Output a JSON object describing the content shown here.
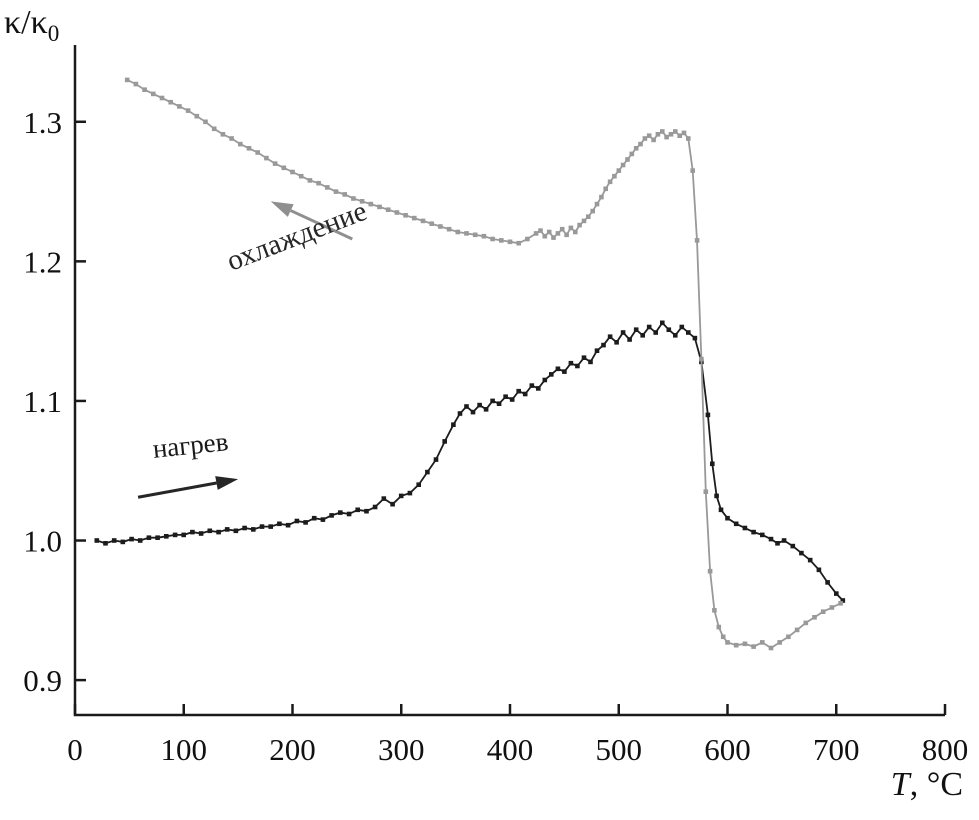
{
  "figure": {
    "background": "#ffffff",
    "axis_color": "#1a1a1a",
    "tick_label_color": "#111111"
  },
  "chart_data": {
    "type": "line",
    "title": "",
    "xlabel": {
      "var": "T",
      "rest": ", °C"
    },
    "ylabel": {
      "base": "κ/κ",
      "sub": "0"
    },
    "xlim": [
      0,
      800
    ],
    "ylim": [
      0.875,
      1.355
    ],
    "x_ticks": [
      0,
      100,
      200,
      300,
      400,
      500,
      600,
      700,
      800
    ],
    "y_ticks": [
      0.9,
      1.0,
      1.1,
      1.2,
      1.3
    ],
    "grid": false,
    "legend_position": "none",
    "annotations": [
      {
        "id": "cooling",
        "text": "охлаждение",
        "text_x": 207,
        "text_y": 1.212,
        "rotation_deg": -21,
        "font_px": 29,
        "text_color": "#262626",
        "arrow": {
          "from_x": 255,
          "from_y": 1.216,
          "to_x": 180,
          "to_y": 1.243,
          "color": "#8f8f8f",
          "width": 3
        }
      },
      {
        "id": "heating",
        "text": "нагрев",
        "text_x": 107,
        "text_y": 1.062,
        "rotation_deg": -6,
        "font_px": 27,
        "text_color": "#1a1a1a",
        "arrow": {
          "from_x": 58,
          "from_y": 1.031,
          "to_x": 150,
          "to_y": 1.044,
          "color": "#262626",
          "width": 3
        }
      }
    ],
    "series": [
      {
        "id": "heating",
        "name": "нагрев",
        "color": "#1c1c1c",
        "marker": "square",
        "points": [
          [
            20,
            1.0
          ],
          [
            28,
            0.998
          ],
          [
            36,
            1.0
          ],
          [
            44,
            0.999
          ],
          [
            52,
            1.001
          ],
          [
            60,
            1.0
          ],
          [
            68,
            1.002
          ],
          [
            76,
            1.002
          ],
          [
            84,
            1.003
          ],
          [
            92,
            1.004
          ],
          [
            100,
            1.004
          ],
          [
            108,
            1.006
          ],
          [
            116,
            1.005
          ],
          [
            124,
            1.007
          ],
          [
            132,
            1.006
          ],
          [
            140,
            1.008
          ],
          [
            148,
            1.007
          ],
          [
            156,
            1.009
          ],
          [
            164,
            1.008
          ],
          [
            172,
            1.01
          ],
          [
            180,
            1.01
          ],
          [
            188,
            1.012
          ],
          [
            196,
            1.011
          ],
          [
            204,
            1.014
          ],
          [
            212,
            1.013
          ],
          [
            220,
            1.016
          ],
          [
            228,
            1.015
          ],
          [
            236,
            1.018
          ],
          [
            244,
            1.02
          ],
          [
            252,
            1.019
          ],
          [
            260,
            1.022
          ],
          [
            268,
            1.021
          ],
          [
            276,
            1.024
          ],
          [
            284,
            1.03
          ],
          [
            292,
            1.026
          ],
          [
            300,
            1.032
          ],
          [
            308,
            1.034
          ],
          [
            316,
            1.04
          ],
          [
            324,
            1.049
          ],
          [
            332,
            1.058
          ],
          [
            340,
            1.071
          ],
          [
            348,
            1.083
          ],
          [
            354,
            1.091
          ],
          [
            360,
            1.096
          ],
          [
            366,
            1.092
          ],
          [
            372,
            1.097
          ],
          [
            378,
            1.094
          ],
          [
            384,
            1.1
          ],
          [
            390,
            1.098
          ],
          [
            396,
            1.103
          ],
          [
            402,
            1.101
          ],
          [
            408,
            1.107
          ],
          [
            414,
            1.105
          ],
          [
            420,
            1.111
          ],
          [
            426,
            1.109
          ],
          [
            432,
            1.115
          ],
          [
            438,
            1.119
          ],
          [
            444,
            1.123
          ],
          [
            450,
            1.121
          ],
          [
            456,
            1.127
          ],
          [
            462,
            1.125
          ],
          [
            468,
            1.131
          ],
          [
            474,
            1.128
          ],
          [
            480,
            1.136
          ],
          [
            486,
            1.14
          ],
          [
            492,
            1.146
          ],
          [
            498,
            1.142
          ],
          [
            504,
            1.149
          ],
          [
            510,
            1.144
          ],
          [
            516,
            1.151
          ],
          [
            522,
            1.147
          ],
          [
            528,
            1.153
          ],
          [
            534,
            1.149
          ],
          [
            540,
            1.156
          ],
          [
            546,
            1.151
          ],
          [
            552,
            1.147
          ],
          [
            558,
            1.153
          ],
          [
            564,
            1.149
          ],
          [
            570,
            1.145
          ],
          [
            576,
            1.128
          ],
          [
            582,
            1.09
          ],
          [
            586,
            1.055
          ],
          [
            590,
            1.032
          ],
          [
            594,
            1.022
          ],
          [
            600,
            1.016
          ],
          [
            608,
            1.012
          ],
          [
            616,
            1.009
          ],
          [
            624,
            1.006
          ],
          [
            632,
            1.004
          ],
          [
            640,
            1.001
          ],
          [
            646,
            0.998
          ],
          [
            652,
            1.0
          ],
          [
            660,
            0.996
          ],
          [
            668,
            0.991
          ],
          [
            676,
            0.986
          ],
          [
            684,
            0.979
          ],
          [
            692,
            0.97
          ],
          [
            700,
            0.962
          ],
          [
            706,
            0.957
          ]
        ]
      },
      {
        "id": "cooling",
        "name": "охлаждение",
        "color": "#999999",
        "marker": "square",
        "points": [
          [
            48,
            1.33
          ],
          [
            56,
            1.327
          ],
          [
            64,
            1.323
          ],
          [
            72,
            1.32
          ],
          [
            80,
            1.317
          ],
          [
            88,
            1.314
          ],
          [
            96,
            1.311
          ],
          [
            104,
            1.308
          ],
          [
            112,
            1.304
          ],
          [
            120,
            1.3
          ],
          [
            128,
            1.295
          ],
          [
            136,
            1.291
          ],
          [
            144,
            1.288
          ],
          [
            152,
            1.284
          ],
          [
            160,
            1.281
          ],
          [
            168,
            1.278
          ],
          [
            176,
            1.274
          ],
          [
            184,
            1.27
          ],
          [
            192,
            1.267
          ],
          [
            200,
            1.264
          ],
          [
            208,
            1.261
          ],
          [
            216,
            1.258
          ],
          [
            224,
            1.256
          ],
          [
            232,
            1.253
          ],
          [
            240,
            1.25
          ],
          [
            248,
            1.248
          ],
          [
            256,
            1.245
          ],
          [
            264,
            1.243
          ],
          [
            272,
            1.241
          ],
          [
            280,
            1.239
          ],
          [
            288,
            1.237
          ],
          [
            296,
            1.235
          ],
          [
            304,
            1.233
          ],
          [
            312,
            1.231
          ],
          [
            320,
            1.229
          ],
          [
            328,
            1.227
          ],
          [
            336,
            1.225
          ],
          [
            344,
            1.223
          ],
          [
            352,
            1.221
          ],
          [
            360,
            1.22
          ],
          [
            368,
            1.219
          ],
          [
            376,
            1.218
          ],
          [
            384,
            1.216
          ],
          [
            392,
            1.215
          ],
          [
            400,
            1.214
          ],
          [
            408,
            1.213
          ],
          [
            416,
            1.216
          ],
          [
            424,
            1.22
          ],
          [
            428,
            1.222
          ],
          [
            432,
            1.218
          ],
          [
            436,
            1.221
          ],
          [
            440,
            1.217
          ],
          [
            444,
            1.22
          ],
          [
            448,
            1.223
          ],
          [
            452,
            1.219
          ],
          [
            456,
            1.224
          ],
          [
            460,
            1.221
          ],
          [
            464,
            1.226
          ],
          [
            468,
            1.229
          ],
          [
            472,
            1.232
          ],
          [
            476,
            1.236
          ],
          [
            480,
            1.241
          ],
          [
            484,
            1.246
          ],
          [
            488,
            1.252
          ],
          [
            492,
            1.257
          ],
          [
            496,
            1.261
          ],
          [
            500,
            1.265
          ],
          [
            504,
            1.269
          ],
          [
            508,
            1.273
          ],
          [
            512,
            1.277
          ],
          [
            516,
            1.281
          ],
          [
            520,
            1.284
          ],
          [
            524,
            1.288
          ],
          [
            528,
            1.29
          ],
          [
            532,
            1.287
          ],
          [
            536,
            1.291
          ],
          [
            540,
            1.293
          ],
          [
            544,
            1.289
          ],
          [
            548,
            1.291
          ],
          [
            552,
            1.293
          ],
          [
            556,
            1.29
          ],
          [
            560,
            1.292
          ],
          [
            564,
            1.288
          ],
          [
            568,
            1.265
          ],
          [
            572,
            1.215
          ],
          [
            576,
            1.13
          ],
          [
            580,
            1.035
          ],
          [
            584,
            0.978
          ],
          [
            588,
            0.95
          ],
          [
            592,
            0.938
          ],
          [
            596,
            0.931
          ],
          [
            600,
            0.927
          ],
          [
            608,
            0.925
          ],
          [
            616,
            0.926
          ],
          [
            624,
            0.924
          ],
          [
            632,
            0.927
          ],
          [
            640,
            0.923
          ],
          [
            648,
            0.927
          ],
          [
            656,
            0.931
          ],
          [
            664,
            0.936
          ],
          [
            672,
            0.941
          ],
          [
            680,
            0.945
          ],
          [
            688,
            0.949
          ],
          [
            696,
            0.952
          ],
          [
            704,
            0.955
          ]
        ]
      }
    ]
  }
}
